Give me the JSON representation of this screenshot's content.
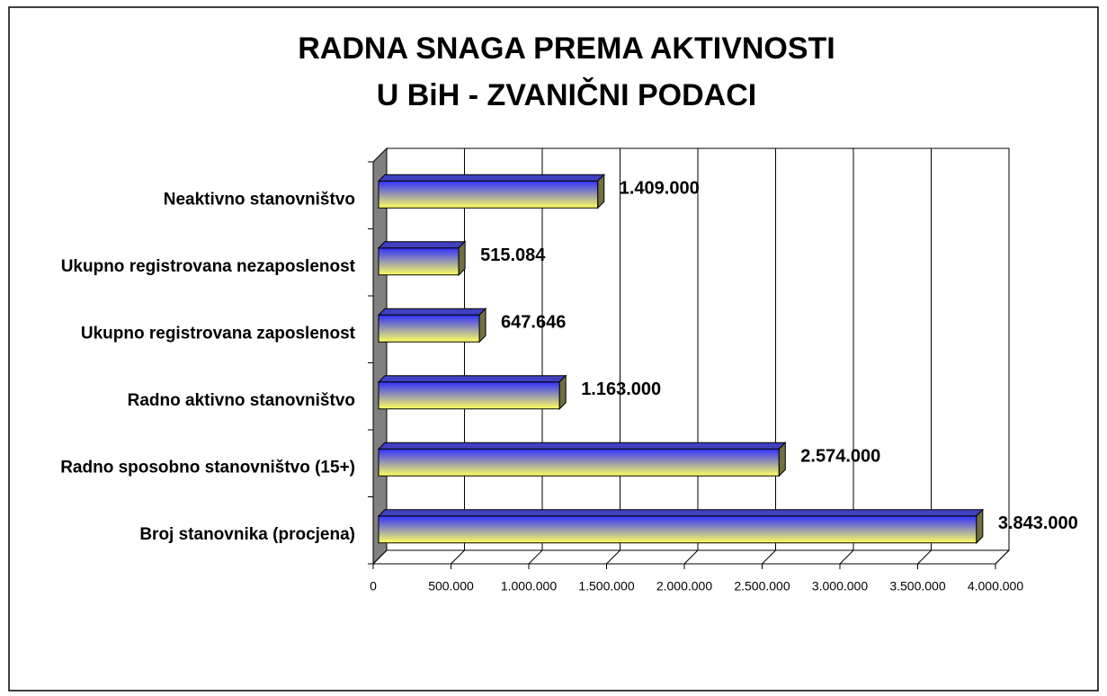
{
  "chart_data": {
    "type": "bar3d",
    "orientation": "horizontal",
    "title": [
      "RADNA SNAGA PREMA AKTIVNOSTI",
      "U BiH - ZVANIČNI PODACI"
    ],
    "categories": [
      "Neaktivno stanovništvo",
      "Ukupno registrovana nezaposlenost",
      "Ukupno registrovana zaposlenost",
      "Radno aktivno stanovništvo",
      "Radno sposobno stanovništvo (15+)",
      "Broj stanovnika (procjena)"
    ],
    "values": [
      1409000,
      515084,
      647646,
      1163000,
      2574000,
      3843000
    ],
    "value_labels": [
      "1.409.000",
      "515.084",
      "647.646",
      "1.163.000",
      "2.574.000",
      "3.843.000"
    ],
    "color": [
      "#3030ff",
      "#ffff60"
    ],
    "xlim": [
      0,
      4000000
    ],
    "xticks": [
      0,
      {
        "value": 500000,
        "label": "500.000"
      },
      {
        "value": 1000000,
        "label": "1.000.000"
      },
      {
        "value": 1500000,
        "label": "1.500.000"
      },
      {
        "value": 2000000,
        "label": "2.000.000"
      },
      {
        "value": 2500000,
        "label": "2.500.000"
      },
      {
        "value": 3000000,
        "label": "3.000.000"
      },
      {
        "value": 3500000,
        "label": "3.500.000"
      },
      {
        "value": 4000000,
        "label": "4.000.000"
      }
    ],
    "grid": true
  }
}
